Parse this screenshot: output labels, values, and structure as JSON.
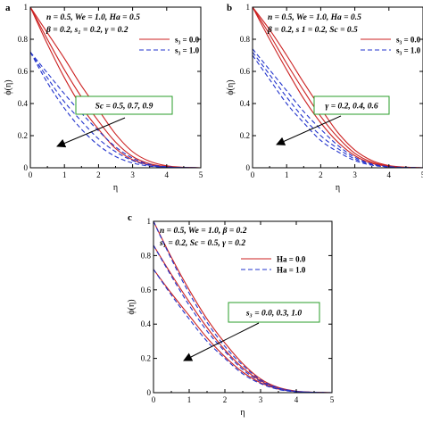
{
  "chart_data": [
    {
      "panel_label": "a",
      "type": "line",
      "xlabel": "η",
      "ylabel": "ϕ(η)",
      "xlim": [
        0,
        5
      ],
      "ylim": [
        0,
        1
      ],
      "xticks": [
        "0",
        "1",
        "2",
        "3",
        "4",
        "5"
      ],
      "yticks": [
        "0",
        "0.2",
        "0.4",
        "0.6",
        "0.8",
        "1"
      ],
      "grid": false,
      "parameter_lines": [
        "n = 0.5, We = 1.0, Ha = 0.5",
        "β = 0.2, s₁ = 0.2, γ = 0.2"
      ],
      "legend": {
        "position": "top-right",
        "entries": [
          {
            "label": "s₃ = 0.0",
            "color": "#cc2222",
            "dash": "solid"
          },
          {
            "label": "s₃ = 1.0",
            "color": "#2233cc",
            "dash": "dashed"
          }
        ]
      },
      "annotation": "Sc = 0.5, 0.7, 0.9",
      "x": [
        0,
        0.5,
        1,
        1.5,
        2,
        2.5,
        3,
        3.5,
        4,
        4.5,
        5
      ],
      "series": [
        {
          "values": [
            1.0,
            0.84,
            0.68,
            0.51,
            0.36,
            0.21,
            0.1,
            0.04,
            0.012,
            0.003,
            0.0
          ],
          "color": "#cc2222",
          "dash": "solid"
        },
        {
          "values": [
            1.0,
            0.8,
            0.61,
            0.44,
            0.29,
            0.16,
            0.07,
            0.025,
            0.008,
            0.002,
            0.0
          ],
          "color": "#cc2222",
          "dash": "solid"
        },
        {
          "values": [
            1.0,
            0.77,
            0.56,
            0.38,
            0.24,
            0.12,
            0.05,
            0.018,
            0.005,
            0.001,
            0.0
          ],
          "color": "#cc2222",
          "dash": "solid"
        },
        {
          "values": [
            0.72,
            0.59,
            0.46,
            0.34,
            0.23,
            0.13,
            0.06,
            0.02,
            0.006,
            0.001,
            0.0
          ],
          "color": "#2233cc",
          "dash": "dashed"
        },
        {
          "values": [
            0.72,
            0.56,
            0.41,
            0.29,
            0.18,
            0.1,
            0.045,
            0.015,
            0.004,
            0.001,
            0.0
          ],
          "color": "#2233cc",
          "dash": "dashed"
        },
        {
          "values": [
            0.72,
            0.53,
            0.37,
            0.24,
            0.14,
            0.07,
            0.03,
            0.01,
            0.003,
            0.001,
            0.0
          ],
          "color": "#2233cc",
          "dash": "dashed"
        }
      ]
    },
    {
      "panel_label": "b",
      "type": "line",
      "xlabel": "η",
      "ylabel": "ϕ(η)",
      "xlim": [
        0,
        5
      ],
      "ylim": [
        0,
        1
      ],
      "xticks": [
        "0",
        "1",
        "2",
        "3",
        "4",
        "5"
      ],
      "yticks": [
        "0",
        "0.2",
        "0.4",
        "0.6",
        "0.8",
        "1"
      ],
      "grid": false,
      "parameter_lines": [
        "n = 0.5, We = 1.0, Ha = 0.5",
        "β = 0.2, s 1 = 0.2, Sc = 0.5"
      ],
      "legend": {
        "position": "top-right",
        "entries": [
          {
            "label": "s₃ = 0.0",
            "color": "#cc2222",
            "dash": "solid"
          },
          {
            "label": "s₃ = 1.0",
            "color": "#2233cc",
            "dash": "dashed"
          }
        ]
      },
      "annotation": "γ = 0.2, 0.4, 0.6",
      "x": [
        0,
        0.5,
        1,
        1.5,
        2,
        2.5,
        3,
        3.5,
        4,
        4.5,
        5
      ],
      "series": [
        {
          "values": [
            1.0,
            0.86,
            0.7,
            0.53,
            0.37,
            0.22,
            0.11,
            0.045,
            0.014,
            0.004,
            0.0
          ],
          "color": "#cc2222",
          "dash": "solid"
        },
        {
          "values": [
            1.0,
            0.83,
            0.65,
            0.48,
            0.32,
            0.19,
            0.09,
            0.035,
            0.011,
            0.003,
            0.0
          ],
          "color": "#cc2222",
          "dash": "solid"
        },
        {
          "values": [
            1.0,
            0.8,
            0.61,
            0.43,
            0.28,
            0.16,
            0.075,
            0.028,
            0.008,
            0.002,
            0.0
          ],
          "color": "#cc2222",
          "dash": "solid"
        },
        {
          "values": [
            0.74,
            0.61,
            0.48,
            0.35,
            0.24,
            0.14,
            0.065,
            0.024,
            0.007,
            0.002,
            0.0
          ],
          "color": "#2233cc",
          "dash": "dashed"
        },
        {
          "values": [
            0.72,
            0.58,
            0.44,
            0.31,
            0.2,
            0.12,
            0.055,
            0.02,
            0.006,
            0.001,
            0.0
          ],
          "color": "#2233cc",
          "dash": "dashed"
        },
        {
          "values": [
            0.7,
            0.55,
            0.4,
            0.28,
            0.17,
            0.1,
            0.045,
            0.016,
            0.005,
            0.001,
            0.0
          ],
          "color": "#2233cc",
          "dash": "dashed"
        }
      ]
    },
    {
      "panel_label": "c",
      "type": "line",
      "xlabel": "η",
      "ylabel": "ϕ(η)",
      "xlim": [
        0,
        5
      ],
      "ylim": [
        0,
        1
      ],
      "xticks": [
        "0",
        "1",
        "2",
        "3",
        "4",
        "5"
      ],
      "yticks": [
        "0",
        "0.2",
        "0.4",
        "0.6",
        "0.8",
        "1"
      ],
      "grid": false,
      "parameter_lines": [
        "n = 0.5, We = 1.0, β = 0.2",
        "s₁ = 0.2, Sc = 0.5, γ = 0.2"
      ],
      "legend": {
        "position": "top-right",
        "entries": [
          {
            "label": "Ha = 0.0",
            "color": "#cc2222",
            "dash": "solid"
          },
          {
            "label": "Ha = 1.0",
            "color": "#2233cc",
            "dash": "dashed"
          }
        ]
      },
      "annotation": "s₃ = 0.0, 0.3, 1.0",
      "x": [
        0,
        0.5,
        1,
        1.5,
        2,
        2.5,
        3,
        3.5,
        4,
        4.5,
        5
      ],
      "series": [
        {
          "values": [
            1.0,
            0.79,
            0.6,
            0.43,
            0.29,
            0.17,
            0.08,
            0.03,
            0.009,
            0.002,
            0.0
          ],
          "color": "#cc2222",
          "dash": "solid"
        },
        {
          "values": [
            0.86,
            0.69,
            0.53,
            0.38,
            0.25,
            0.145,
            0.07,
            0.026,
            0.008,
            0.002,
            0.0
          ],
          "color": "#cc2222",
          "dash": "solid"
        },
        {
          "values": [
            0.72,
            0.58,
            0.45,
            0.32,
            0.21,
            0.12,
            0.058,
            0.021,
            0.006,
            0.001,
            0.0
          ],
          "color": "#cc2222",
          "dash": "solid"
        },
        {
          "values": [
            1.0,
            0.78,
            0.58,
            0.41,
            0.27,
            0.16,
            0.075,
            0.028,
            0.008,
            0.002,
            0.0
          ],
          "color": "#2233cc",
          "dash": "dashed"
        },
        {
          "values": [
            0.86,
            0.68,
            0.51,
            0.36,
            0.24,
            0.135,
            0.065,
            0.024,
            0.007,
            0.002,
            0.0
          ],
          "color": "#2233cc",
          "dash": "dashed"
        },
        {
          "values": [
            0.72,
            0.57,
            0.43,
            0.3,
            0.2,
            0.11,
            0.053,
            0.019,
            0.005,
            0.001,
            0.0
          ],
          "color": "#2233cc",
          "dash": "dashed"
        }
      ]
    }
  ]
}
